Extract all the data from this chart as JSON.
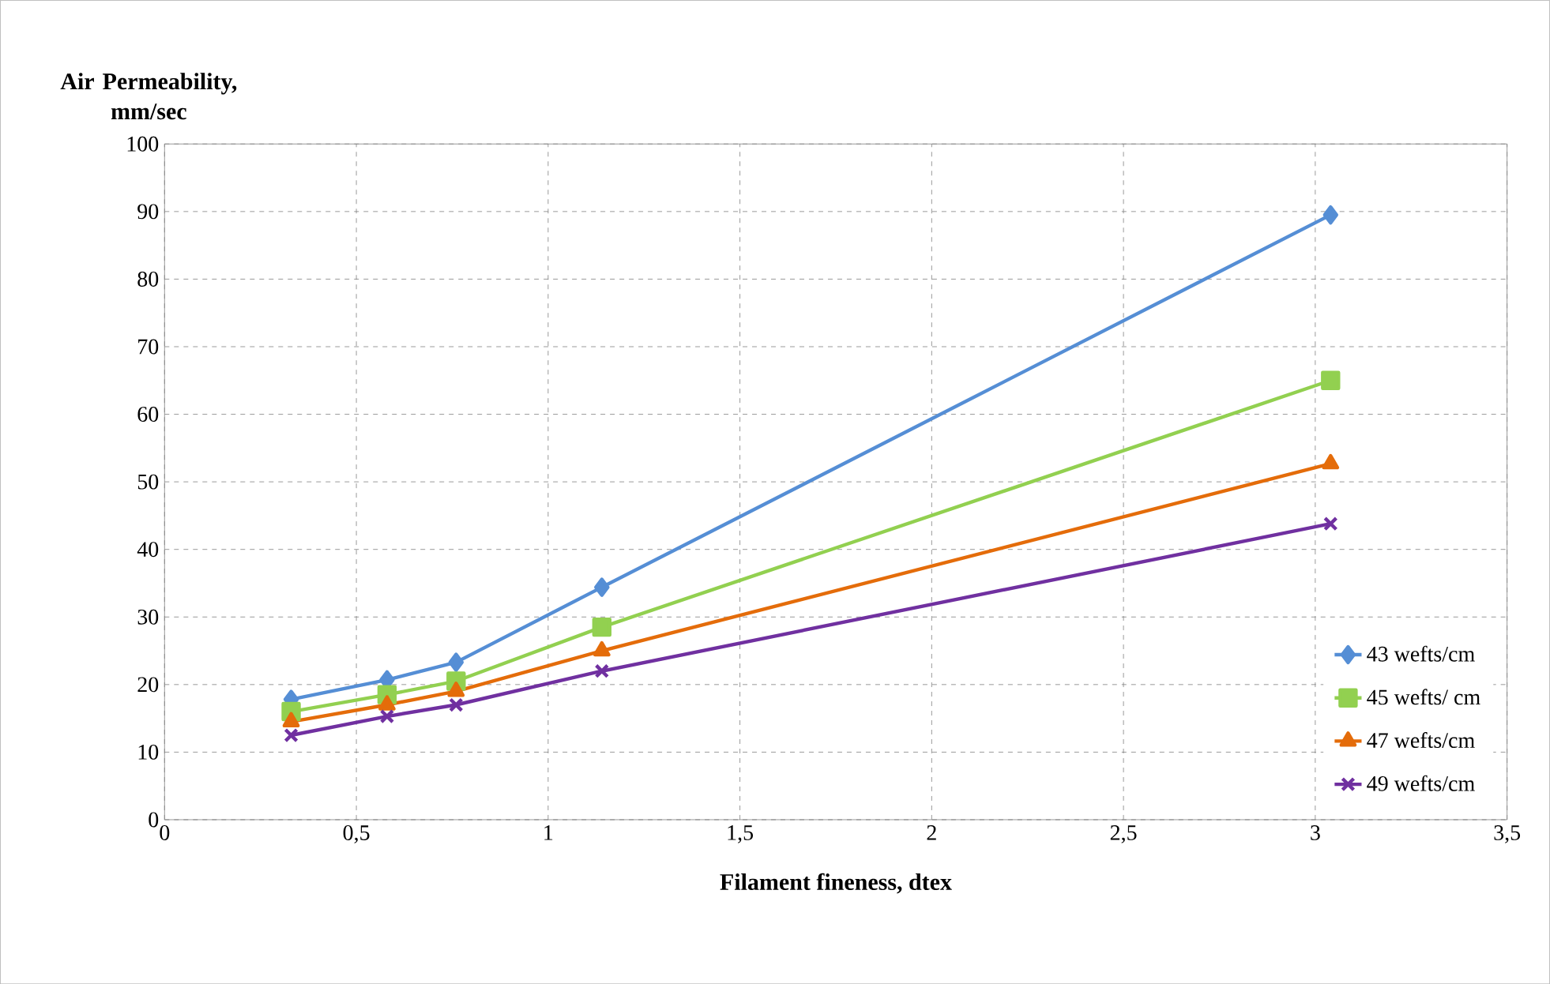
{
  "chart_data": {
    "type": "line",
    "xlabel": "Filament fineness, dtex",
    "ylabel": "Air Permeability, mm/sec",
    "x": [
      0.33,
      0.58,
      0.76,
      1.14,
      3.04
    ],
    "series": [
      {
        "name": "43 wefts/cm",
        "color": "#558ed5",
        "marker": "diamond",
        "values": [
          17.8,
          20.7,
          23.3,
          34.4,
          89.5
        ]
      },
      {
        "name": "45 wefts/ cm",
        "color": "#92d050",
        "marker": "square",
        "values": [
          16,
          18.5,
          20.5,
          28.5,
          65
        ]
      },
      {
        "name": "47 wefts/cm",
        "color": "#e46c0a",
        "marker": "triangle",
        "values": [
          14.5,
          17,
          19,
          25,
          52.7
        ]
      },
      {
        "name": "49 wefts/cm",
        "color": "#7030a0",
        "marker": "cross",
        "values": [
          12.5,
          15.3,
          17,
          22,
          43.8
        ]
      }
    ],
    "xlim": [
      0,
      3.5
    ],
    "ylim": [
      0,
      100
    ],
    "xticks": [
      0,
      {
        "value": 0.5,
        "label": "0,5"
      },
      1,
      {
        "value": 1.5,
        "label": "1,5"
      },
      2,
      {
        "value": 2.5,
        "label": "2,5"
      },
      3,
      {
        "value": 3.5,
        "label": "3,5"
      }
    ],
    "yticks": [
      0,
      10,
      20,
      30,
      40,
      50,
      60,
      70,
      80,
      90,
      100
    ],
    "grid": true,
    "legend": "right",
    "line_style": "solid"
  }
}
